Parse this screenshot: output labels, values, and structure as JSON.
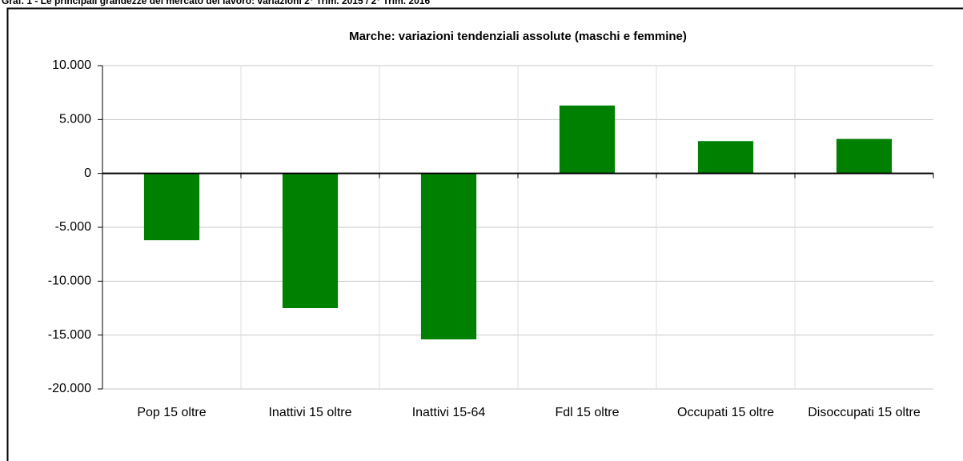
{
  "chart_data": {
    "type": "bar",
    "supertitle": "Graf. 1 - Le principali grandezze del mercato del lavoro: variazioni 2° Trim. 2015 / 2° Trim. 2016",
    "title": "Marche: variazioni tendenziali assolute (maschi e femmine)",
    "categories": [
      "Pop 15 oltre",
      "Inattivi 15 oltre",
      "Inattivi 15-64",
      "Fdl 15 oltre",
      "Occupati 15 oltre",
      "Disoccupati 15 oltre"
    ],
    "values": [
      -6200,
      -12500,
      -15400,
      6300,
      3000,
      3200
    ],
    "color": "#008000",
    "ylim": [
      -20000,
      10000
    ],
    "yticks": [
      {
        "value": -20000,
        "label": "-20.000"
      },
      {
        "value": -15000,
        "label": "-15.000"
      },
      {
        "value": -10000,
        "label": "-10.000"
      },
      {
        "value": -5000,
        "label": "-5.000"
      },
      0,
      {
        "value": 5000,
        "label": "5.000"
      },
      {
        "value": 10000,
        "label": "10.000"
      }
    ],
    "grid": true
  }
}
